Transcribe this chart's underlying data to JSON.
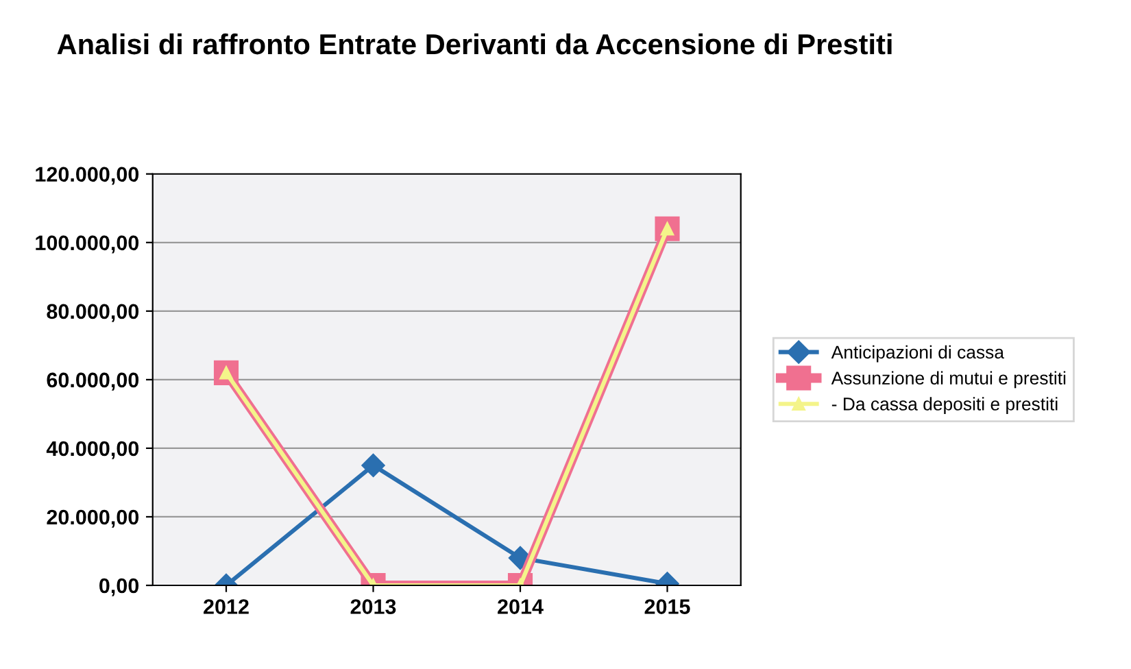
{
  "chart_data": {
    "type": "line",
    "title": "Analisi di raffronto Entrate Derivanti da Accensione di Prestiti",
    "categories": [
      "2012",
      "2013",
      "2014",
      "2015"
    ],
    "series": [
      {
        "name": "Anticipazioni di cassa",
        "color": "#2a6fb0",
        "marker": "diamond",
        "values": [
          0,
          35000,
          8000,
          500
        ]
      },
      {
        "name": "Assunzione di mutui e prestiti",
        "color": "#f07090",
        "marker": "square",
        "values": [
          62000,
          0,
          0,
          104000
        ]
      },
      {
        "name": "- Da cassa depositi e prestiti",
        "color": "#f4f48a",
        "marker": "triangle",
        "values": [
          62000,
          0,
          0,
          104000
        ]
      }
    ],
    "ylim": [
      0,
      120000
    ],
    "yticks": [
      {
        "value": 0,
        "label": "0,00"
      },
      {
        "value": 20000,
        "label": "20.000,00"
      },
      {
        "value": 40000,
        "label": "40.000,00"
      },
      {
        "value": 60000,
        "label": "60.000,00"
      },
      {
        "value": 80000,
        "label": "80.000,00"
      },
      {
        "value": 100000,
        "label": "100.000,00"
      },
      {
        "value": 120000,
        "label": "120.000,00"
      }
    ],
    "grid": "y",
    "legend": "right"
  }
}
